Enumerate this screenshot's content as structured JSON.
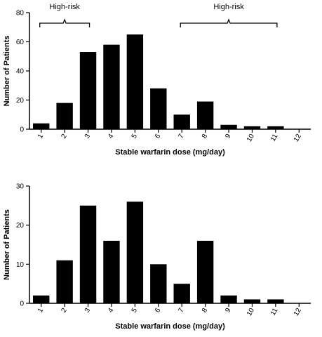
{
  "chart_data": [
    {
      "type": "bar",
      "categories": [
        "1",
        "2",
        "3",
        "4",
        "5",
        "6",
        "7",
        "8",
        "9",
        "10",
        "11",
        "12"
      ],
      "values": [
        4,
        18,
        53,
        58,
        65,
        28,
        10,
        19,
        3,
        2,
        2,
        0
      ],
      "xlabel": "Stable warfarin dose (mg/day)",
      "ylabel": "Number of Patients",
      "ylim": [
        0,
        80
      ],
      "yticks": [
        "0",
        "20",
        "40",
        "60",
        "80"
      ],
      "bar_color": "#000000",
      "grid": false,
      "annotations": [
        {
          "text": "High-risk",
          "range": [
            "1",
            "3"
          ]
        },
        {
          "text": "High-risk",
          "range": [
            "7",
            "11"
          ]
        }
      ]
    },
    {
      "type": "bar",
      "categories": [
        "1",
        "2",
        "3",
        "4",
        "5",
        "6",
        "7",
        "8",
        "9",
        "10",
        "11",
        "12"
      ],
      "values": [
        2,
        11,
        25,
        16,
        26,
        10,
        5,
        16,
        2,
        1,
        1,
        0
      ],
      "xlabel": "Stable warfarin dose (mg/day)",
      "ylabel": "Number of Patients",
      "ylim": [
        0,
        30
      ],
      "yticks": [
        "0",
        "10",
        "20",
        "30"
      ],
      "bar_color": "#000000",
      "grid": false
    }
  ]
}
